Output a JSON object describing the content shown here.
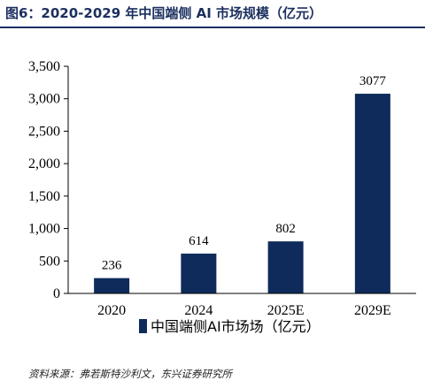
{
  "figure": {
    "title": "图6：2020-2029 年中国端侧 AI 市场规模（亿元）",
    "source": "资料来源：弗若斯特沙利文，东兴证券研究所"
  },
  "colors": {
    "bar": "#0f2b5b",
    "title": "#1b2f5e",
    "axis": "#000000"
  },
  "chart_data": {
    "type": "bar",
    "categories": [
      "2020",
      "2024",
      "2025E",
      "2029E"
    ],
    "series": [
      {
        "name": "中国端侧AI市场场（亿元）",
        "values": [
          236,
          614,
          802,
          3077
        ]
      }
    ],
    "data_labels": [
      "236",
      "614",
      "802",
      "3077"
    ],
    "yticks": [
      "0",
      "500",
      "1,000",
      "1,500",
      "2,000",
      "2,500",
      "3,000",
      "3,500"
    ],
    "ylim": [
      0,
      3500
    ],
    "grid": false,
    "legend": "bottom-center",
    "xlabel": "",
    "ylabel": ""
  }
}
